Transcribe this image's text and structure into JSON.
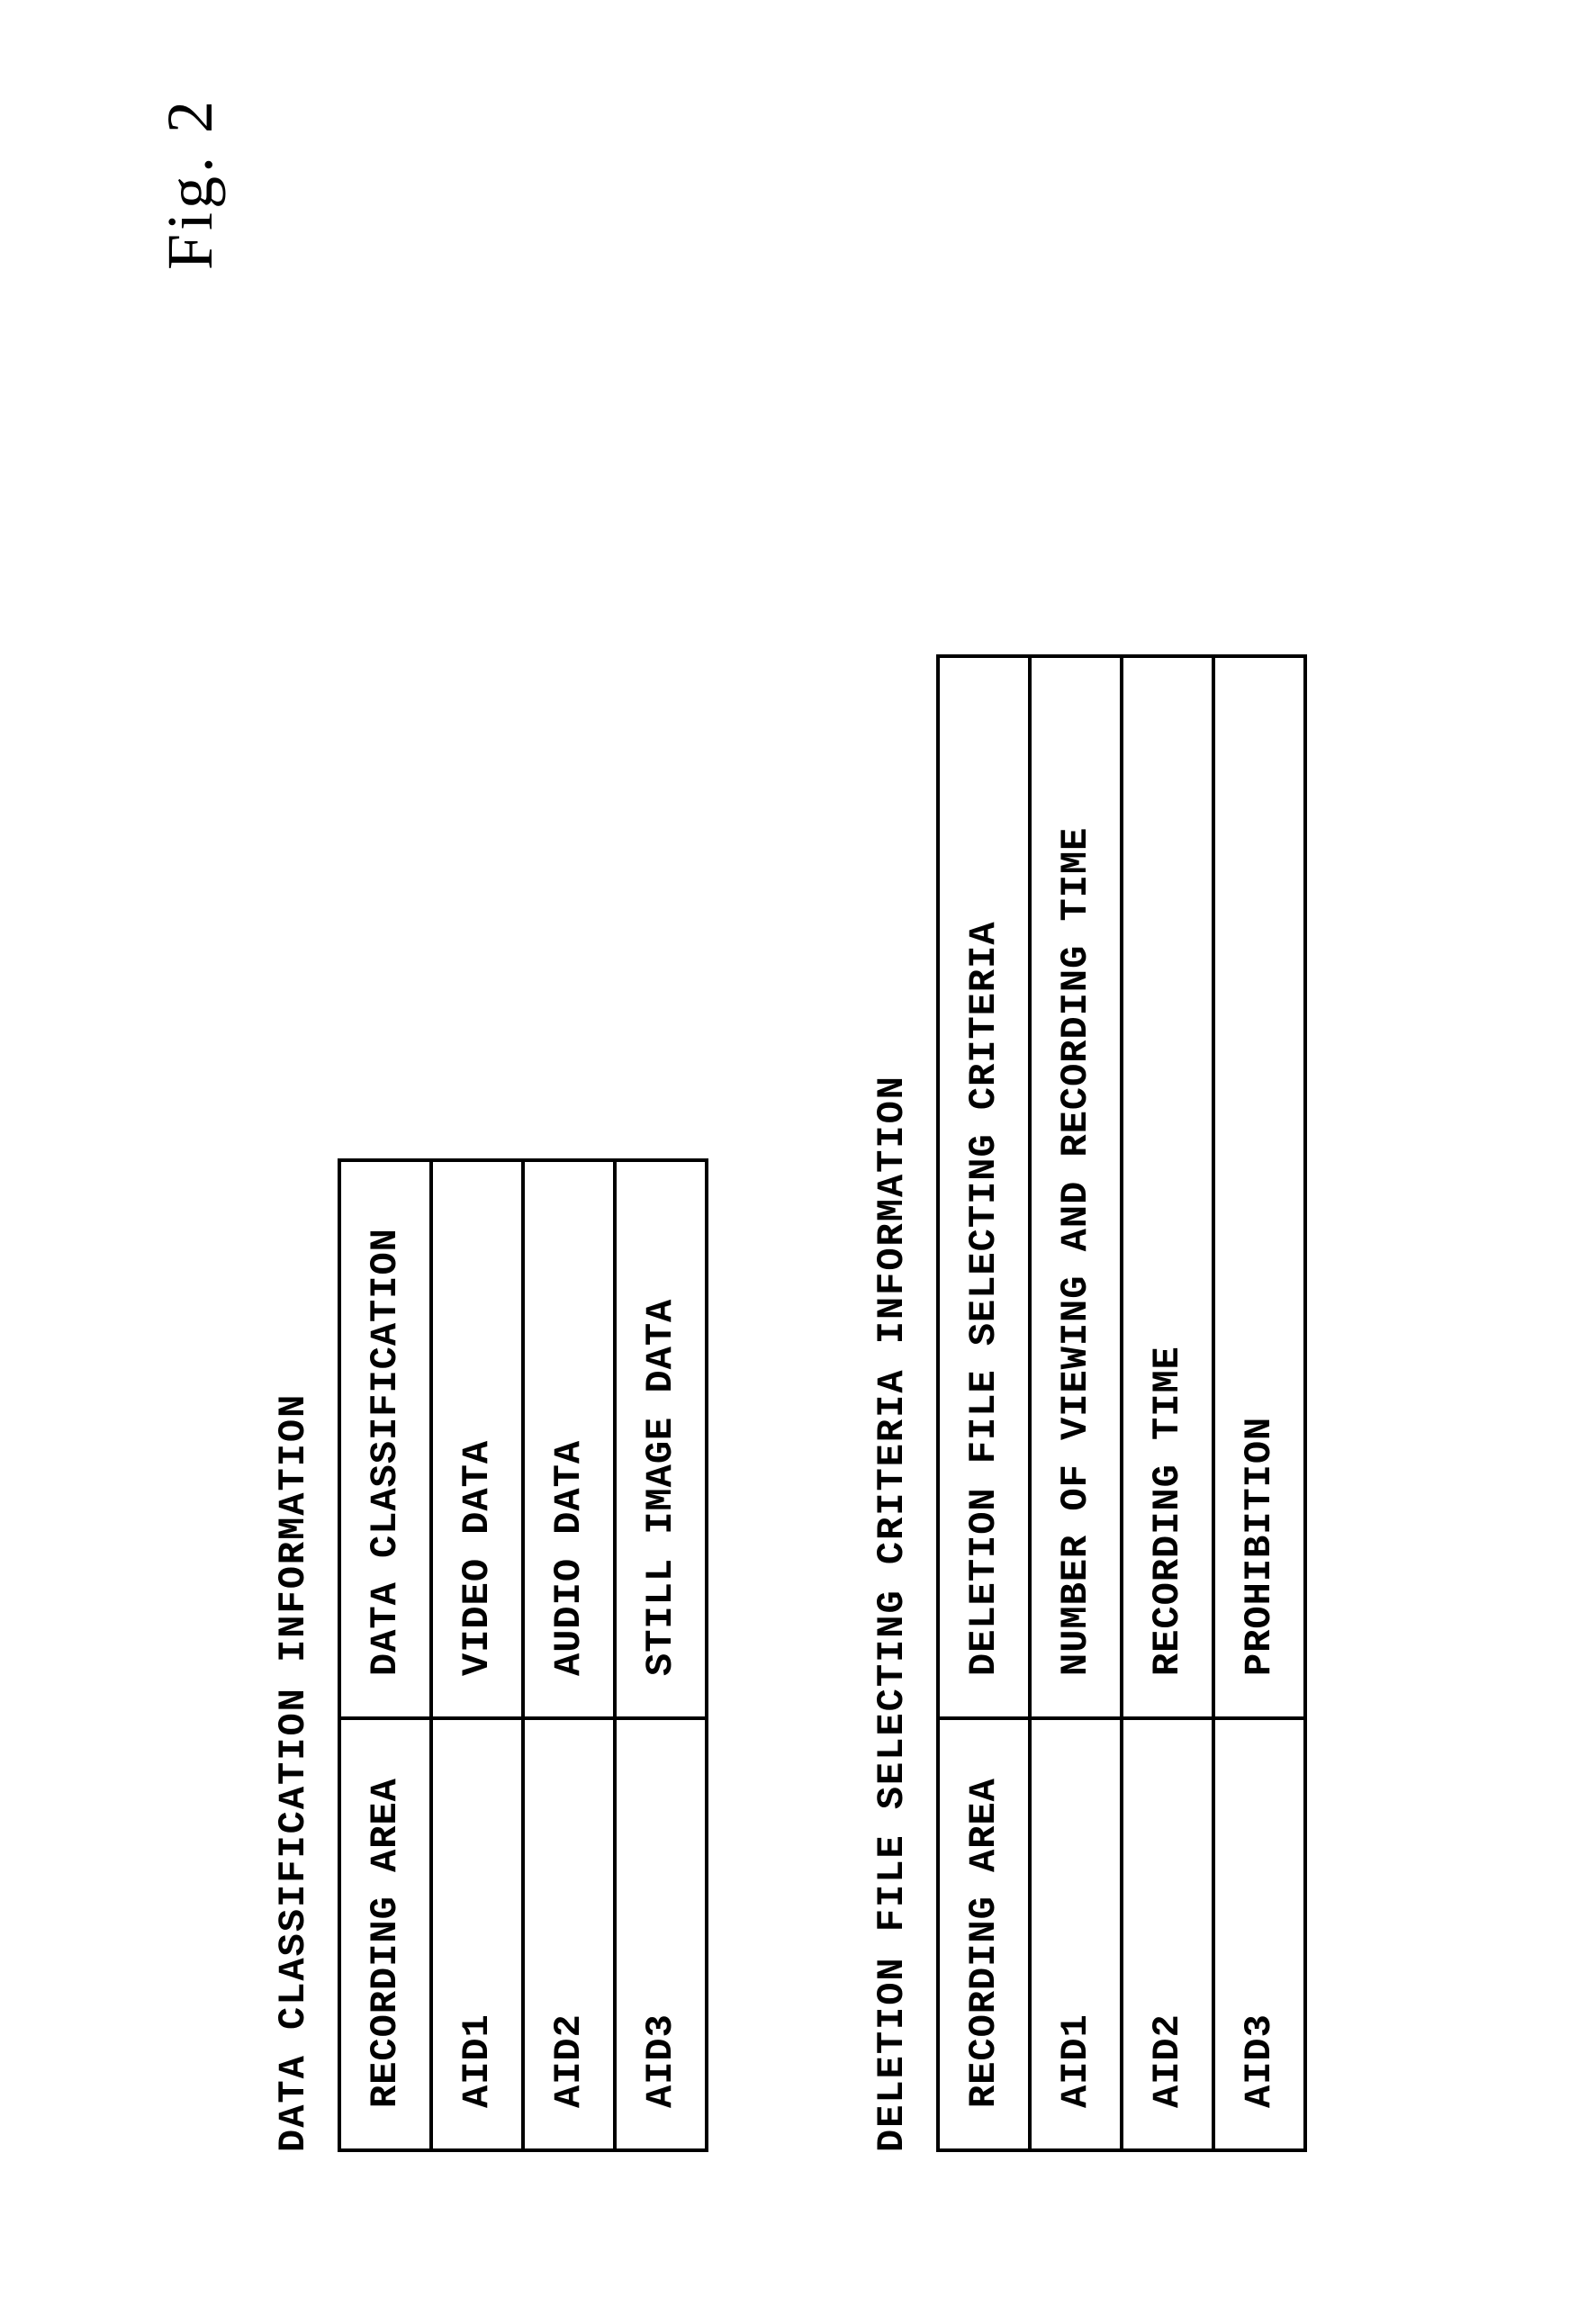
{
  "figure_label": "Fig. 2",
  "table1": {
    "title": "DATA CLASSIFICATION INFORMATION",
    "headers": {
      "col1": "RECORDING AREA",
      "col2": "DATA CLASSIFICATION"
    },
    "rows": [
      {
        "area": "AID1",
        "data": "VIDEO DATA"
      },
      {
        "area": "AID2",
        "data": "AUDIO DATA"
      },
      {
        "area": "AID3",
        "data": "STILL IMAGE DATA"
      }
    ]
  },
  "table2": {
    "title": "DELETION FILE SELECTING CRITERIA INFORMATION",
    "headers": {
      "col1": "RECORDING AREA",
      "col2": "DELETION FILE SELECTING CRITERIA"
    },
    "rows": [
      {
        "area": "AID1",
        "data": "NUMBER OF VIEWING AND RECORDING TIME"
      },
      {
        "area": "AID2",
        "data": "RECORDING TIME"
      },
      {
        "area": "AID3",
        "data": "PROHIBITION"
      }
    ]
  },
  "styling": {
    "font_family": "Courier New",
    "border_width": 4,
    "border_color": "#000000",
    "background_color": "#ffffff",
    "text_color": "#000000",
    "title_fontsize": 42,
    "cell_fontsize": 42,
    "figure_label_fontsize": 72,
    "rotation": -90
  }
}
